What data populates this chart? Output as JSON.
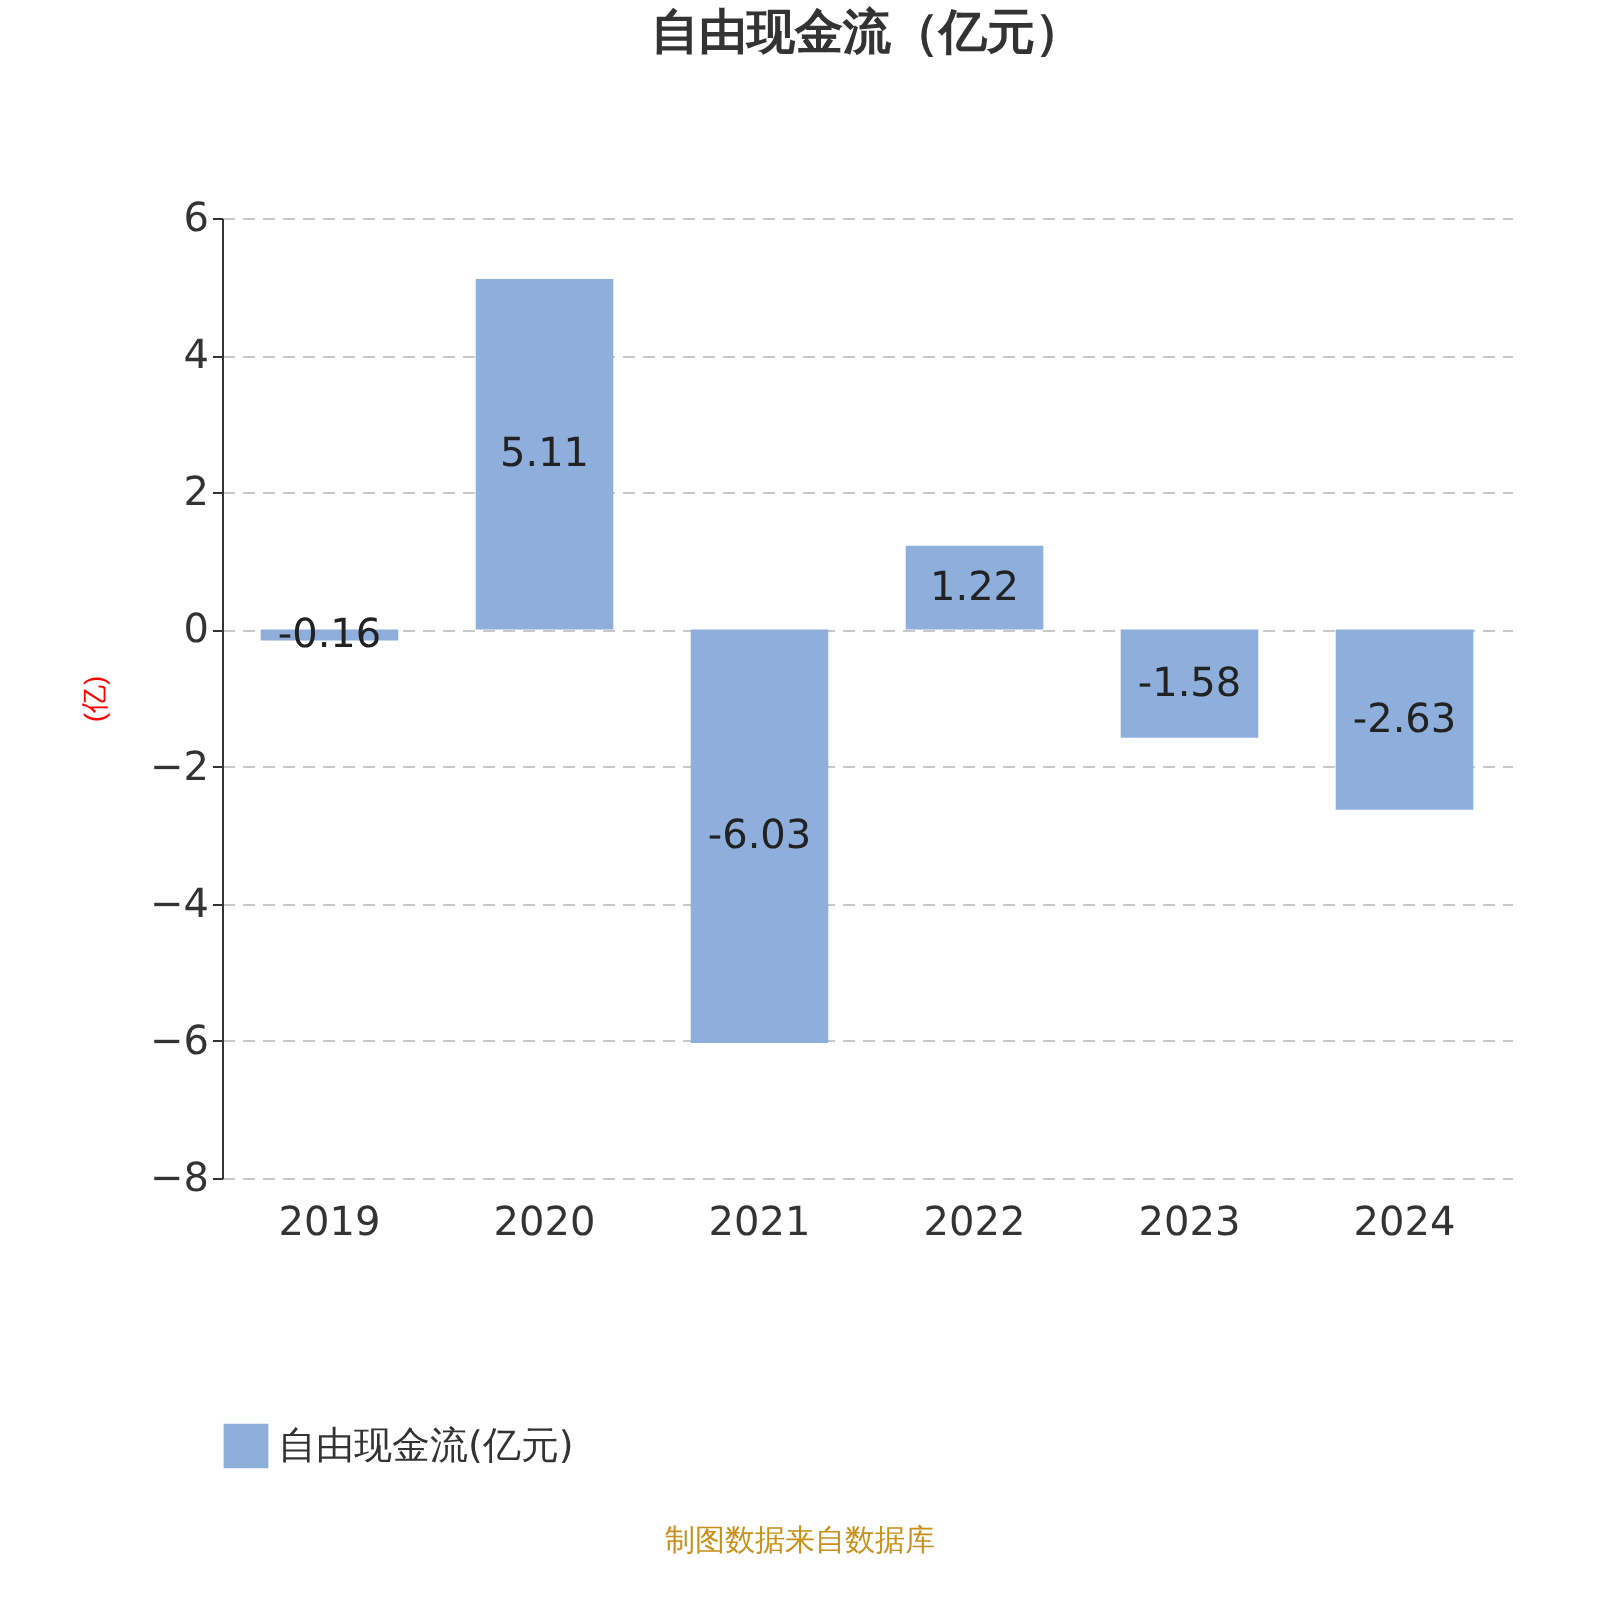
{
  "chart_data": {
    "type": "bar",
    "title": "自由现金流（亿元）",
    "ylabel": "(亿)",
    "categories": [
      "2019",
      "2020",
      "2021",
      "2022",
      "2023",
      "2024"
    ],
    "series": [
      {
        "name": "自由现金流(亿元)",
        "color": "#8eaedb",
        "values": [
          -0.16,
          5.11,
          -6.03,
          1.22,
          -1.58,
          -2.63
        ]
      }
    ],
    "ylim": [
      -8,
      6
    ],
    "yticks": [
      -8,
      -6,
      -4,
      -2,
      0,
      2,
      4,
      6
    ],
    "grid": "y",
    "legend": "bottom",
    "data_labels": true,
    "annotations": [
      "制图数据来自数据库"
    ]
  }
}
